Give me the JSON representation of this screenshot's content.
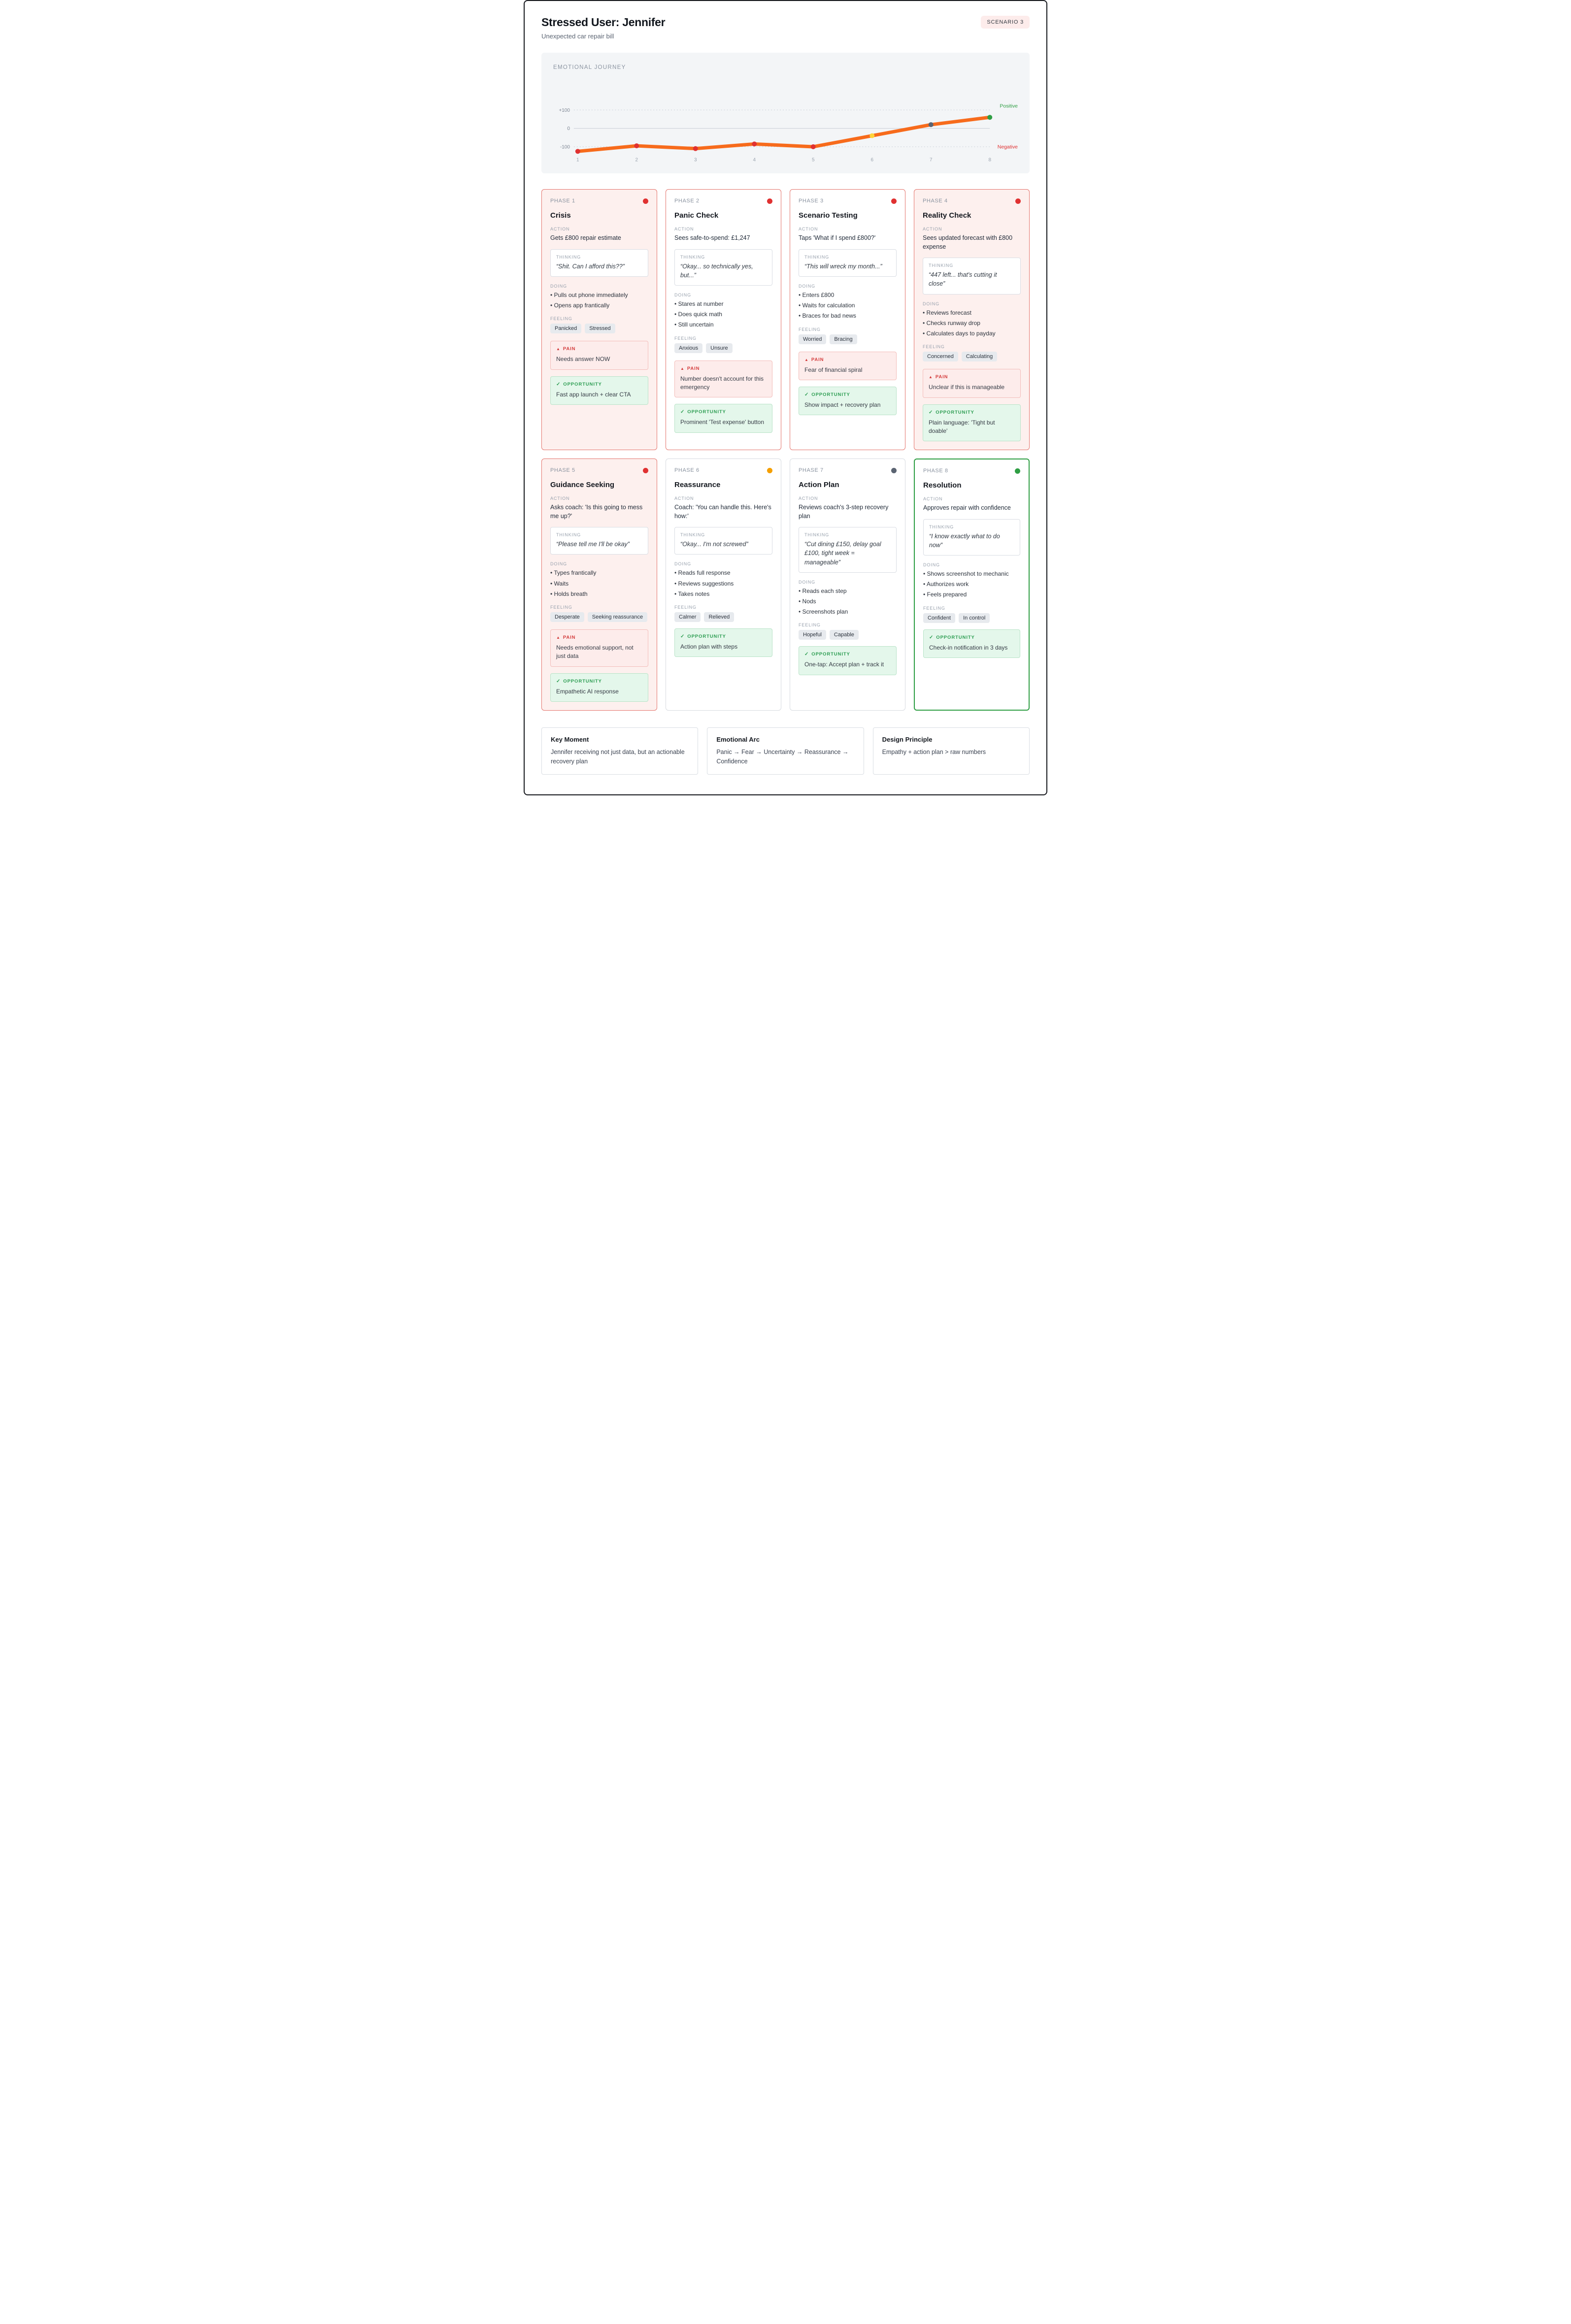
{
  "header": {
    "title": "Stressed User: Jennifer",
    "subtitle": "Unexpected car repair bill",
    "badge": "SCENARIO 3"
  },
  "chart_data": {
    "type": "line",
    "title": "EMOTIONAL JOURNEY",
    "x": [
      "1",
      "2",
      "3",
      "4",
      "5",
      "6",
      "7",
      "8"
    ],
    "values": [
      -125,
      -95,
      -110,
      -85,
      -100,
      -40,
      20,
      60
    ],
    "ylim": [
      -150,
      150
    ],
    "yticks": [
      "+100",
      "0",
      "-100"
    ],
    "ytick_values": [
      100,
      0,
      -100
    ],
    "line_color": "#f76b1c",
    "point_colors": [
      "#e03131",
      "#e03131",
      "#e03131",
      "#e03131",
      "#e03131",
      "#ffd43b",
      "#5b6472",
      "#2f9e44"
    ],
    "positive_label": "Positive",
    "negative_label": "Negative",
    "positive_color": "#2f9e44",
    "negative_color": "#e03131",
    "grid": "dotted at +100 and -100, solid at 0",
    "legend_position": "none"
  },
  "labels": {
    "action": "ACTION",
    "thinking": "THINKING",
    "doing": "DOING",
    "feeling": "FEELING",
    "pain": "PAIN",
    "opportunity": "OPPORTUNITY"
  },
  "phases": [
    {
      "phase": "PHASE 1",
      "title": "Crisis",
      "colors": {
        "card_bg": "#fdf0ee",
        "border": "#e4756d",
        "dot": "#e03131"
      },
      "emphasis": false,
      "action": "Gets £800 repair estimate",
      "thinking": "“Shit. Can I afford this??”",
      "doing": [
        "Pulls out phone immediately",
        "Opens app frantically"
      ],
      "feeling": [
        "Panicked",
        "Stressed"
      ],
      "pain": "Needs answer NOW",
      "opportunity": "Fast app launch + clear CTA"
    },
    {
      "phase": "PHASE 2",
      "title": "Panic Check",
      "colors": {
        "card_bg": "#ffffff",
        "border": "#e4756d",
        "dot": "#e03131"
      },
      "emphasis": false,
      "action": "Sees safe-to-spend: £1,247",
      "thinking": "“Okay... so technically yes, but...”",
      "doing": [
        "Stares at number",
        "Does quick math",
        "Still uncertain"
      ],
      "feeling": [
        "Anxious",
        "Unsure"
      ],
      "pain": "Number doesn't account for this emergency",
      "opportunity": "Prominent 'Test expense' button"
    },
    {
      "phase": "PHASE 3",
      "title": "Scenario Testing",
      "colors": {
        "card_bg": "#ffffff",
        "border": "#e4756d",
        "dot": "#e03131"
      },
      "emphasis": false,
      "action": "Taps 'What if I spend £800?'",
      "thinking": "“This will wreck my month...”",
      "doing": [
        "Enters £800",
        "Waits for calculation",
        "Braces for bad news"
      ],
      "feeling": [
        "Worried",
        "Bracing"
      ],
      "pain": "Fear of financial spiral",
      "opportunity": "Show impact + recovery plan"
    },
    {
      "phase": "PHASE 4",
      "title": "Reality Check",
      "colors": {
        "card_bg": "#fdf0ee",
        "border": "#e4756d",
        "dot": "#e03131"
      },
      "emphasis": false,
      "action": "Sees updated forecast with £800 expense",
      "thinking": "“447 left... that's cutting it close”",
      "doing": [
        "Reviews forecast",
        "Checks runway drop",
        "Calculates days to payday"
      ],
      "feeling": [
        "Concerned",
        "Calculating"
      ],
      "pain": "Unclear if this is manageable",
      "opportunity": "Plain language: 'Tight but doable'"
    },
    {
      "phase": "PHASE 5",
      "title": "Guidance Seeking",
      "colors": {
        "card_bg": "#fdf0ee",
        "border": "#e4756d",
        "dot": "#e03131"
      },
      "emphasis": false,
      "action": "Asks coach: 'Is this going to mess me up?'",
      "thinking": "“Please tell me I'll be okay”",
      "doing": [
        "Types frantically",
        "Waits",
        "Holds breath"
      ],
      "feeling": [
        "Desperate",
        "Seeking reassurance"
      ],
      "pain": "Needs emotional support, not just data",
      "opportunity": "Empathetic AI response"
    },
    {
      "phase": "PHASE 6",
      "title": "Reassurance",
      "colors": {
        "card_bg": "#ffffff",
        "border": "#d7dbe0",
        "dot": "#f59f00"
      },
      "emphasis": false,
      "action": "Coach: 'You can handle this. Here's how:'",
      "thinking": "“Okay... I'm not screwed”",
      "doing": [
        "Reads full response",
        "Reviews suggestions",
        "Takes notes"
      ],
      "feeling": [
        "Calmer",
        "Relieved"
      ],
      "pain": null,
      "opportunity": "Action plan with steps"
    },
    {
      "phase": "PHASE 7",
      "title": "Action Plan",
      "colors": {
        "card_bg": "#ffffff",
        "border": "#d7dbe0",
        "dot": "#5b6472"
      },
      "emphasis": false,
      "action": "Reviews coach's 3-step recovery plan",
      "thinking": "“Cut dining £150, delay goal £100, tight week = manageable”",
      "doing": [
        "Reads each step",
        "Nods",
        "Screenshots plan"
      ],
      "feeling": [
        "Hopeful",
        "Capable"
      ],
      "pain": null,
      "opportunity": "One-tap: Accept plan + track it"
    },
    {
      "phase": "PHASE 8",
      "title": "Resolution",
      "colors": {
        "card_bg": "#ffffff",
        "border": "#2f9e44",
        "dot": "#2f9e44"
      },
      "emphasis": true,
      "action": "Approves repair with confidence",
      "thinking": "“I know exactly what to do now”",
      "doing": [
        "Shows screenshot to mechanic",
        "Authorizes work",
        "Feels prepared"
      ],
      "feeling": [
        "Confident",
        "In control"
      ],
      "pain": null,
      "opportunity": "Check-in notification in 3 days"
    }
  ],
  "footer": [
    {
      "title": "Key Moment",
      "text": "Jennifer receiving not just data, but an actionable recovery plan"
    },
    {
      "title": "Emotional Arc",
      "text": "Panic → Fear → Uncertainty → Reassurance → Confidence"
    },
    {
      "title": "Design Principle",
      "text": "Empathy + action plan > raw numbers"
    }
  ]
}
